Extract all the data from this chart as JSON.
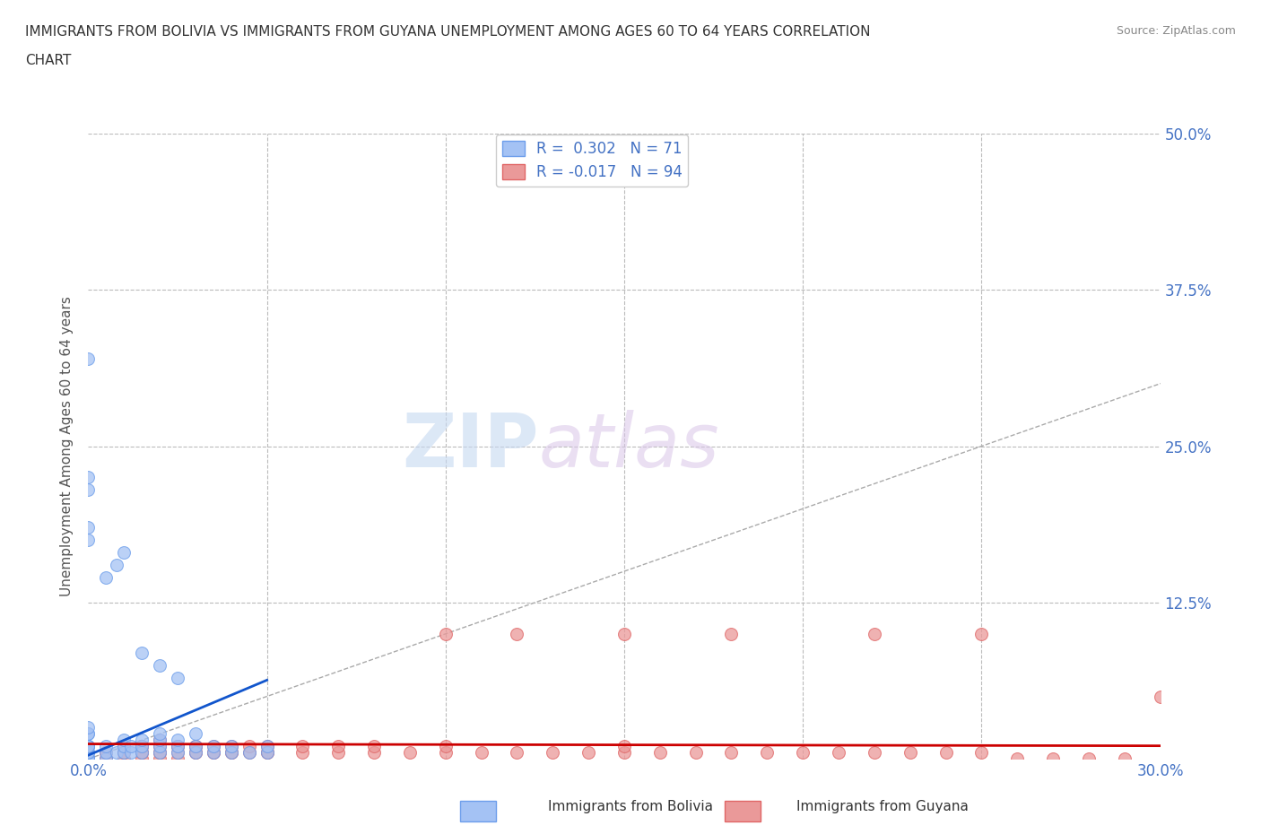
{
  "title_line1": "IMMIGRANTS FROM BOLIVIA VS IMMIGRANTS FROM GUYANA UNEMPLOYMENT AMONG AGES 60 TO 64 YEARS CORRELATION",
  "title_line2": "CHART",
  "source": "Source: ZipAtlas.com",
  "ylabel": "Unemployment Among Ages 60 to 64 years",
  "xlim": [
    0.0,
    0.3
  ],
  "ylim": [
    0.0,
    0.5
  ],
  "xticks": [
    0.0,
    0.05,
    0.1,
    0.15,
    0.2,
    0.25,
    0.3
  ],
  "xticklabels": [
    "0.0%",
    "",
    "",
    "",
    "",
    "",
    "30.0%"
  ],
  "yticks": [
    0.0,
    0.125,
    0.25,
    0.375,
    0.5
  ],
  "yticklabels_right": [
    "",
    "12.5%",
    "25.0%",
    "37.5%",
    "50.0%"
  ],
  "bolivia_color": "#a4c2f4",
  "guyana_color": "#ea9999",
  "bolivia_edge": "#6d9eeb",
  "guyana_edge": "#e06666",
  "watermark_zip": "ZIP",
  "watermark_atlas": "atlas",
  "background_color": "#ffffff",
  "grid_color": "#bbbbbb",
  "title_color": "#333333",
  "axis_label_color": "#555555",
  "tick_color": "#4472c4",
  "ref_line_color": "#aaaaaa",
  "trend_bolivia_color": "#1155cc",
  "trend_guyana_color": "#cc0000",
  "bolivia_x": [
    0.0,
    0.0,
    0.0,
    0.0,
    0.0,
    0.0,
    0.0,
    0.0,
    0.0,
    0.0,
    0.0,
    0.0,
    0.0,
    0.0,
    0.0,
    0.0,
    0.0,
    0.0,
    0.0,
    0.0,
    0.0,
    0.0,
    0.0,
    0.0,
    0.0,
    0.0,
    0.0,
    0.0,
    0.0,
    0.0,
    0.005,
    0.005,
    0.005,
    0.008,
    0.01,
    0.01,
    0.01,
    0.012,
    0.012,
    0.015,
    0.015,
    0.015,
    0.02,
    0.02,
    0.02,
    0.02,
    0.025,
    0.025,
    0.025,
    0.03,
    0.03,
    0.03,
    0.035,
    0.035,
    0.04,
    0.04,
    0.045,
    0.05,
    0.05,
    0.0,
    0.0,
    0.0,
    0.0,
    0.0,
    0.005,
    0.008,
    0.01,
    0.015,
    0.02,
    0.025
  ],
  "bolivia_y": [
    0.0,
    0.0,
    0.0,
    0.0,
    0.0,
    0.0,
    0.0,
    0.0,
    0.0,
    0.0,
    0.0,
    0.0,
    0.0,
    0.0,
    0.0,
    0.0,
    0.0,
    0.0,
    0.0,
    0.0,
    0.005,
    0.005,
    0.005,
    0.01,
    0.01,
    0.01,
    0.01,
    0.02,
    0.02,
    0.025,
    0.0,
    0.005,
    0.01,
    0.005,
    0.005,
    0.01,
    0.015,
    0.005,
    0.01,
    0.005,
    0.01,
    0.015,
    0.005,
    0.01,
    0.015,
    0.02,
    0.005,
    0.01,
    0.015,
    0.005,
    0.01,
    0.02,
    0.005,
    0.01,
    0.005,
    0.01,
    0.005,
    0.005,
    0.01,
    0.175,
    0.185,
    0.215,
    0.225,
    0.32,
    0.145,
    0.155,
    0.165,
    0.085,
    0.075,
    0.065
  ],
  "guyana_x": [
    0.0,
    0.0,
    0.0,
    0.0,
    0.0,
    0.0,
    0.0,
    0.0,
    0.0,
    0.0,
    0.0,
    0.0,
    0.0,
    0.0,
    0.0,
    0.0,
    0.0,
    0.0,
    0.0,
    0.0,
    0.005,
    0.005,
    0.005,
    0.005,
    0.01,
    0.01,
    0.01,
    0.01,
    0.015,
    0.015,
    0.015,
    0.015,
    0.015,
    0.02,
    0.02,
    0.02,
    0.02,
    0.02,
    0.025,
    0.025,
    0.025,
    0.025,
    0.03,
    0.03,
    0.03,
    0.03,
    0.035,
    0.035,
    0.035,
    0.04,
    0.04,
    0.04,
    0.045,
    0.045,
    0.05,
    0.05,
    0.05,
    0.06,
    0.06,
    0.07,
    0.07,
    0.08,
    0.08,
    0.09,
    0.1,
    0.1,
    0.11,
    0.12,
    0.13,
    0.14,
    0.15,
    0.15,
    0.16,
    0.17,
    0.18,
    0.19,
    0.2,
    0.21,
    0.22,
    0.23,
    0.24,
    0.25,
    0.26,
    0.27,
    0.28,
    0.29,
    0.3,
    0.1,
    0.12,
    0.15,
    0.18,
    0.22,
    0.25
  ],
  "guyana_y": [
    0.0,
    0.0,
    0.0,
    0.0,
    0.0,
    0.0,
    0.0,
    0.0,
    0.0,
    0.0,
    0.0,
    0.0,
    0.0,
    0.0,
    0.0,
    0.0,
    0.0,
    0.0,
    0.0,
    0.0,
    0.0,
    0.0,
    0.005,
    0.005,
    0.0,
    0.005,
    0.005,
    0.01,
    0.0,
    0.005,
    0.005,
    0.01,
    0.01,
    0.0,
    0.005,
    0.005,
    0.01,
    0.015,
    0.0,
    0.005,
    0.01,
    0.01,
    0.005,
    0.005,
    0.01,
    0.01,
    0.005,
    0.005,
    0.01,
    0.005,
    0.005,
    0.01,
    0.005,
    0.01,
    0.005,
    0.005,
    0.01,
    0.005,
    0.01,
    0.005,
    0.01,
    0.005,
    0.01,
    0.005,
    0.005,
    0.01,
    0.005,
    0.005,
    0.005,
    0.005,
    0.005,
    0.01,
    0.005,
    0.005,
    0.005,
    0.005,
    0.005,
    0.005,
    0.005,
    0.005,
    0.005,
    0.005,
    0.0,
    0.0,
    0.0,
    0.0,
    0.05,
    0.1,
    0.1,
    0.1,
    0.1,
    0.1,
    0.1
  ]
}
